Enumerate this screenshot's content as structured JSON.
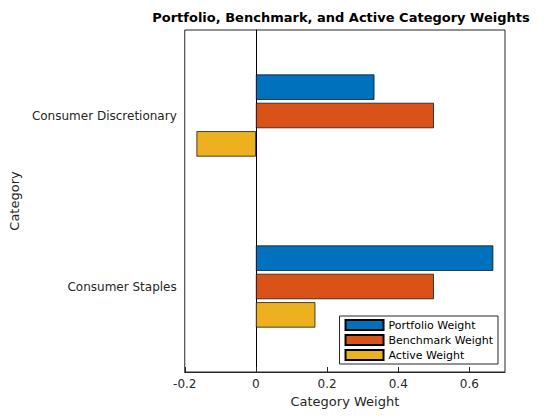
{
  "chart_data": {
    "type": "bar",
    "orientation": "horizontal",
    "title": "Portfolio, Benchmark, and Active Category Weights",
    "x_label": "Category Weight",
    "y_label": "Category",
    "categories": [
      "Consumer Discretionary",
      "Consumer Staples"
    ],
    "series": [
      {
        "name": "Portfolio Weight",
        "color": "#0072BD",
        "values": [
          0.333,
          0.667
        ]
      },
      {
        "name": "Benchmark Weight",
        "color": "#D95319",
        "values": [
          0.5,
          0.5
        ]
      },
      {
        "name": "Active Weight",
        "color": "#EDB120",
        "values": [
          -0.167,
          0.167
        ]
      }
    ],
    "xlim": [
      -0.2,
      0.7
    ],
    "xticks": [
      -0.2,
      0,
      0.2,
      0.4,
      0.6
    ],
    "legend": "lower right",
    "grid": false
  }
}
